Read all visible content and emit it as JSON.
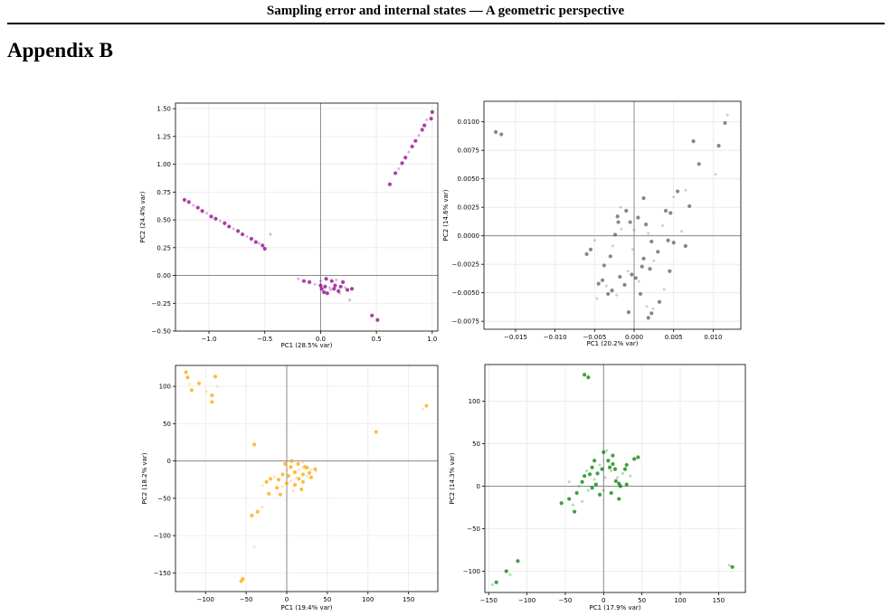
{
  "header": {
    "running_title": "Sampling error and internal states — A geometric perspective",
    "appendix_heading": "Appendix B"
  },
  "chart_data": [
    {
      "type": "scatter",
      "color": "#8b008b",
      "xlabel": "PC1 (28.5% var)",
      "ylabel": "PC2 (24.4% var)",
      "xlim": [
        -1.3,
        1.05
      ],
      "ylim": [
        -0.5,
        1.55
      ],
      "xticks": [
        -1.0,
        -0.5,
        0.0,
        0.5,
        1.0
      ],
      "xtick_labels": [
        "−1.0",
        "−0.5",
        "0.0",
        "0.5",
        "1.0"
      ],
      "yticks": [
        -0.5,
        -0.25,
        0.0,
        0.25,
        0.5,
        0.75,
        1.0,
        1.25,
        1.5
      ],
      "ytick_labels": [
        "−0.50",
        "−0.25",
        "0.00",
        "0.25",
        "0.50",
        "0.75",
        "1.00",
        "1.25",
        "1.50"
      ],
      "grid": true,
      "zero_lines": true,
      "points": [
        [
          -1.22,
          0.68
        ],
        [
          -1.18,
          0.66
        ],
        [
          -1.14,
          0.63
        ],
        [
          -1.1,
          0.61
        ],
        [
          -1.06,
          0.58
        ],
        [
          -1.02,
          0.56
        ],
        [
          -0.98,
          0.53
        ],
        [
          -0.94,
          0.51
        ],
        [
          -0.9,
          0.49
        ],
        [
          -0.86,
          0.47
        ],
        [
          -0.82,
          0.44
        ],
        [
          -0.78,
          0.42
        ],
        [
          -0.74,
          0.4
        ],
        [
          -0.7,
          0.37
        ],
        [
          -0.66,
          0.35
        ],
        [
          -0.62,
          0.33
        ],
        [
          -0.58,
          0.3
        ],
        [
          -0.55,
          0.29
        ],
        [
          -0.52,
          0.27
        ],
        [
          -0.5,
          0.24
        ],
        [
          -0.45,
          0.37
        ],
        [
          0.62,
          0.82
        ],
        [
          0.67,
          0.92
        ],
        [
          0.7,
          0.96
        ],
        [
          0.73,
          1.01
        ],
        [
          0.76,
          1.06
        ],
        [
          0.79,
          1.11
        ],
        [
          0.82,
          1.16
        ],
        [
          0.85,
          1.21
        ],
        [
          0.88,
          1.26
        ],
        [
          0.91,
          1.31
        ],
        [
          0.93,
          1.35
        ],
        [
          0.95,
          1.4
        ],
        [
          0.99,
          1.41
        ],
        [
          1.0,
          1.47
        ],
        [
          -0.2,
          -0.03
        ],
        [
          -0.15,
          -0.05
        ],
        [
          -0.1,
          -0.06
        ],
        [
          -0.05,
          -0.08
        ],
        [
          0.0,
          -0.09
        ],
        [
          0.04,
          -0.1
        ],
        [
          0.08,
          -0.11
        ],
        [
          0.12,
          -0.12
        ],
        [
          0.16,
          -0.14
        ],
        [
          0.0,
          -0.05
        ],
        [
          0.03,
          -0.15
        ],
        [
          0.06,
          -0.16
        ],
        [
          0.09,
          -0.13
        ],
        [
          0.13,
          -0.09
        ],
        [
          0.18,
          -0.1
        ],
        [
          0.22,
          -0.11
        ],
        [
          0.1,
          -0.05
        ],
        [
          0.05,
          -0.03
        ],
        [
          0.14,
          -0.04
        ],
        [
          0.2,
          -0.06
        ],
        [
          0.01,
          -0.12
        ],
        [
          0.17,
          -0.16
        ],
        [
          0.28,
          -0.12
        ],
        [
          0.24,
          -0.13
        ],
        [
          0.26,
          -0.22
        ],
        [
          0.46,
          -0.36
        ],
        [
          0.51,
          -0.4
        ]
      ]
    },
    {
      "type": "scatter",
      "color": "#5f5f5f",
      "xlabel": "PC1 (20.2% var)",
      "ylabel": "PC2 (14.6% var)",
      "xlim": [
        -0.019,
        0.0135
      ],
      "ylim": [
        -0.0082,
        0.0118
      ],
      "xticks": [
        -0.015,
        -0.01,
        -0.005,
        0.0,
        0.005,
        0.01
      ],
      "xtick_labels": [
        "−0.015",
        "−0.010",
        "−0.005",
        "0.000",
        "0.005",
        "0.010"
      ],
      "yticks": [
        -0.0075,
        -0.005,
        -0.0025,
        0.0,
        0.0025,
        0.005,
        0.0075,
        0.01
      ],
      "ytick_labels": [
        "−0.0075",
        "−0.0050",
        "−0.0025",
        "0.0000",
        "0.0025",
        "0.0050",
        "0.0075",
        "0.0100"
      ],
      "grid": true,
      "zero_lines": true,
      "points": [
        [
          -0.0175,
          0.0091
        ],
        [
          -0.0168,
          0.0089
        ],
        [
          0.0118,
          0.0106
        ],
        [
          0.0115,
          0.0099
        ],
        [
          0.0107,
          0.0079
        ],
        [
          0.0103,
          0.0054
        ],
        [
          0.0082,
          0.0063
        ],
        [
          0.0075,
          0.0083
        ],
        [
          0.0065,
          0.004
        ],
        [
          0.007,
          0.0026
        ],
        [
          0.0055,
          0.0039
        ],
        [
          0.005,
          0.0034
        ],
        [
          0.0046,
          0.002
        ],
        [
          0.004,
          0.0022
        ],
        [
          0.0036,
          0.0009
        ],
        [
          0.0043,
          -0.0004
        ],
        [
          0.005,
          -0.0006
        ],
        [
          0.006,
          0.0004
        ],
        [
          0.0065,
          -0.0009
        ],
        [
          0.003,
          -0.0014
        ],
        [
          0.0025,
          -0.0022
        ],
        [
          0.002,
          -0.0029
        ],
        [
          0.001,
          -0.0027
        ],
        [
          0.0006,
          -0.004
        ],
        [
          0.0002,
          -0.0037
        ],
        [
          -0.0003,
          -0.0034
        ],
        [
          -0.0008,
          -0.0031
        ],
        [
          -0.0012,
          -0.0043
        ],
        [
          -0.0018,
          -0.0036
        ],
        [
          -0.0022,
          -0.0052
        ],
        [
          -0.0028,
          -0.0048
        ],
        [
          -0.0033,
          -0.0051
        ],
        [
          -0.0035,
          -0.0044
        ],
        [
          -0.004,
          -0.0039
        ],
        [
          -0.0045,
          -0.0042
        ],
        [
          -0.0047,
          -0.0055
        ],
        [
          -0.0038,
          -0.0026
        ],
        [
          -0.003,
          -0.0018
        ],
        [
          -0.0027,
          -0.0009
        ],
        [
          -0.0024,
          0.0001
        ],
        [
          -0.002,
          0.0012
        ],
        [
          -0.0016,
          0.0006
        ],
        [
          -0.001,
          0.0022
        ],
        [
          -0.0005,
          0.0012
        ],
        [
          0.0,
          0.0005
        ],
        [
          0.0005,
          0.0016
        ],
        [
          0.0012,
          0.0033
        ],
        [
          0.0018,
          0.0002
        ],
        [
          0.0022,
          -0.0005
        ],
        [
          0.0015,
          0.001
        ],
        [
          -0.0017,
          0.0025
        ],
        [
          -0.0021,
          0.0017
        ],
        [
          -0.0055,
          -0.0012
        ],
        [
          -0.005,
          -0.0004
        ],
        [
          -0.006,
          -0.0016
        ],
        [
          0.0008,
          -0.0051
        ],
        [
          0.0016,
          -0.0062
        ],
        [
          0.0022,
          -0.0068
        ],
        [
          0.0018,
          -0.0072
        ],
        [
          0.0024,
          -0.0064
        ],
        [
          -0.0007,
          -0.0067
        ],
        [
          0.0032,
          -0.0058
        ],
        [
          0.0038,
          -0.0047
        ],
        [
          0.0045,
          -0.0031
        ],
        [
          0.0012,
          -0.002
        ],
        [
          -0.0002,
          -0.0012
        ]
      ]
    },
    {
      "type": "scatter",
      "color": "#ffa500",
      "xlabel": "PC1 (19.4% var)",
      "ylabel": "PC2 (18.2% var)",
      "xlim": [
        -137,
        186
      ],
      "ylim": [
        -175,
        128
      ],
      "xticks": [
        -100,
        -50,
        0,
        50,
        100,
        150
      ],
      "xtick_labels": [
        "−100",
        "−50",
        "0",
        "50",
        "100",
        "150"
      ],
      "yticks": [
        -150,
        -100,
        -50,
        0,
        50,
        100
      ],
      "ytick_labels": [
        "−150",
        "−100",
        "−50",
        "0",
        "50",
        "100"
      ],
      "grid": true,
      "zero_lines": true,
      "points": [
        [
          -124,
          119
        ],
        [
          -122,
          112
        ],
        [
          -120,
          103
        ],
        [
          -117,
          95
        ],
        [
          -108,
          104
        ],
        [
          -99,
          93
        ],
        [
          -92,
          88
        ],
        [
          -88,
          113
        ],
        [
          -86,
          100
        ],
        [
          -92,
          79
        ],
        [
          172,
          74
        ],
        [
          168,
          70
        ],
        [
          110,
          39
        ],
        [
          -40,
          22
        ],
        [
          -40,
          -115
        ],
        [
          -56,
          -161
        ],
        [
          -54,
          -158
        ],
        [
          -30,
          -62
        ],
        [
          -36,
          -68
        ],
        [
          -43,
          -73
        ],
        [
          -30,
          -33
        ],
        [
          -25,
          -28
        ],
        [
          -20,
          -24
        ],
        [
          -15,
          -21
        ],
        [
          -10,
          -25
        ],
        [
          -5,
          -18
        ],
        [
          0,
          -12
        ],
        [
          5,
          -8
        ],
        [
          10,
          -15
        ],
        [
          15,
          -12
        ],
        [
          20,
          -18
        ],
        [
          25,
          -9
        ],
        [
          30,
          -12
        ],
        [
          35,
          -11
        ],
        [
          0,
          -30
        ],
        [
          5,
          -27
        ],
        [
          10,
          -32
        ],
        [
          15,
          -24
        ],
        [
          -5,
          -34
        ],
        [
          -12,
          -36
        ],
        [
          20,
          -28
        ],
        [
          25,
          -20
        ],
        [
          30,
          -22
        ],
        [
          14,
          -4
        ],
        [
          20,
          -2
        ],
        [
          18,
          -38
        ],
        [
          -22,
          -44
        ],
        [
          8,
          -40
        ],
        [
          -8,
          -45
        ],
        [
          2,
          -20
        ],
        [
          12,
          -22
        ],
        [
          22,
          -8
        ],
        [
          28,
          -16
        ],
        [
          36,
          -14
        ],
        [
          6,
          0
        ],
        [
          -2,
          -4
        ]
      ]
    },
    {
      "type": "scatter",
      "color": "#008000",
      "xlabel": "PC1 (17.9% var)",
      "ylabel": "PC2 (14.3% var)",
      "xlim": [
        -155,
        185
      ],
      "ylim": [
        -125,
        143
      ],
      "xticks": [
        -150,
        -100,
        -50,
        0,
        50,
        100,
        150
      ],
      "xtick_labels": [
        "−150",
        "−100",
        "−50",
        "0",
        "50",
        "100",
        "150"
      ],
      "yticks": [
        -100,
        -50,
        0,
        50,
        100
      ],
      "yticks_labels_note": "",
      "ytick_labels": [
        "−100",
        "−50",
        "0",
        "50",
        "100"
      ],
      "grid": true,
      "zero_lines": true,
      "points": [
        [
          -25,
          131
        ],
        [
          -20,
          128
        ],
        [
          -145,
          -116
        ],
        [
          -140,
          -113
        ],
        [
          -127,
          -100
        ],
        [
          -122,
          -104
        ],
        [
          -112,
          -88
        ],
        [
          168,
          -95
        ],
        [
          164,
          -93
        ],
        [
          -55,
          -20
        ],
        [
          -45,
          -15
        ],
        [
          -40,
          -22
        ],
        [
          -38,
          -30
        ],
        [
          -35,
          -8
        ],
        [
          -32,
          0
        ],
        [
          -28,
          5
        ],
        [
          -25,
          12
        ],
        [
          -22,
          18
        ],
        [
          -18,
          14
        ],
        [
          -15,
          22
        ],
        [
          -12,
          8
        ],
        [
          -10,
          2
        ],
        [
          -8,
          15
        ],
        [
          -5,
          25
        ],
        [
          -2,
          20
        ],
        [
          0,
          40
        ],
        [
          4,
          42
        ],
        [
          6,
          30
        ],
        [
          8,
          22
        ],
        [
          10,
          18
        ],
        [
          12,
          26
        ],
        [
          15,
          20
        ],
        [
          18,
          10
        ],
        [
          20,
          3
        ],
        [
          22,
          0
        ],
        [
          25,
          15
        ],
        [
          28,
          20
        ],
        [
          30,
          25
        ],
        [
          35,
          12
        ],
        [
          40,
          32
        ],
        [
          45,
          34
        ],
        [
          -20,
          -5
        ],
        [
          -15,
          -2
        ],
        [
          -5,
          -10
        ],
        [
          0,
          -5
        ],
        [
          10,
          -8
        ],
        [
          20,
          -15
        ],
        [
          -28,
          -18
        ],
        [
          12,
          36
        ],
        [
          -12,
          30
        ],
        [
          2,
          10
        ],
        [
          16,
          6
        ],
        [
          30,
          2
        ],
        [
          -45,
          5
        ]
      ]
    }
  ]
}
